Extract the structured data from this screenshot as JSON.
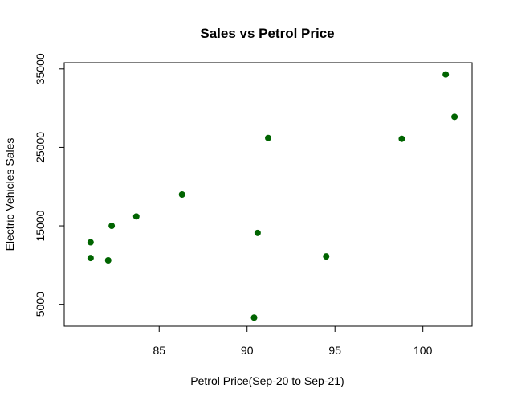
{
  "chart_data": {
    "type": "scatter",
    "title": "Sales vs Petrol Price",
    "xlabel": "Petrol Price(Sep-20 to Sep-21)",
    "ylabel": "Electric Vehicles Sales",
    "xlim": [
      79.6,
      102.8
    ],
    "ylim": [
      2200,
      35800
    ],
    "x_ticks": [
      85,
      90,
      95,
      100
    ],
    "y_ticks": [
      5000,
      15000,
      25000,
      35000
    ],
    "x_tick_labels": [
      "85",
      "90",
      "95",
      "100"
    ],
    "y_tick_labels": [
      "5000",
      "15000",
      "25000",
      "35000"
    ],
    "point_color": "#006400",
    "grid": false,
    "legend": "none",
    "points": [
      {
        "x": 81.1,
        "y": 12900
      },
      {
        "x": 81.1,
        "y": 10900
      },
      {
        "x": 82.1,
        "y": 10600
      },
      {
        "x": 82.3,
        "y": 15000
      },
      {
        "x": 83.7,
        "y": 16200
      },
      {
        "x": 86.3,
        "y": 19000
      },
      {
        "x": 90.4,
        "y": 3300
      },
      {
        "x": 90.6,
        "y": 14100
      },
      {
        "x": 91.2,
        "y": 26200
      },
      {
        "x": 94.5,
        "y": 11100
      },
      {
        "x": 98.8,
        "y": 26100
      },
      {
        "x": 101.3,
        "y": 34300
      },
      {
        "x": 101.8,
        "y": 28900
      }
    ]
  }
}
